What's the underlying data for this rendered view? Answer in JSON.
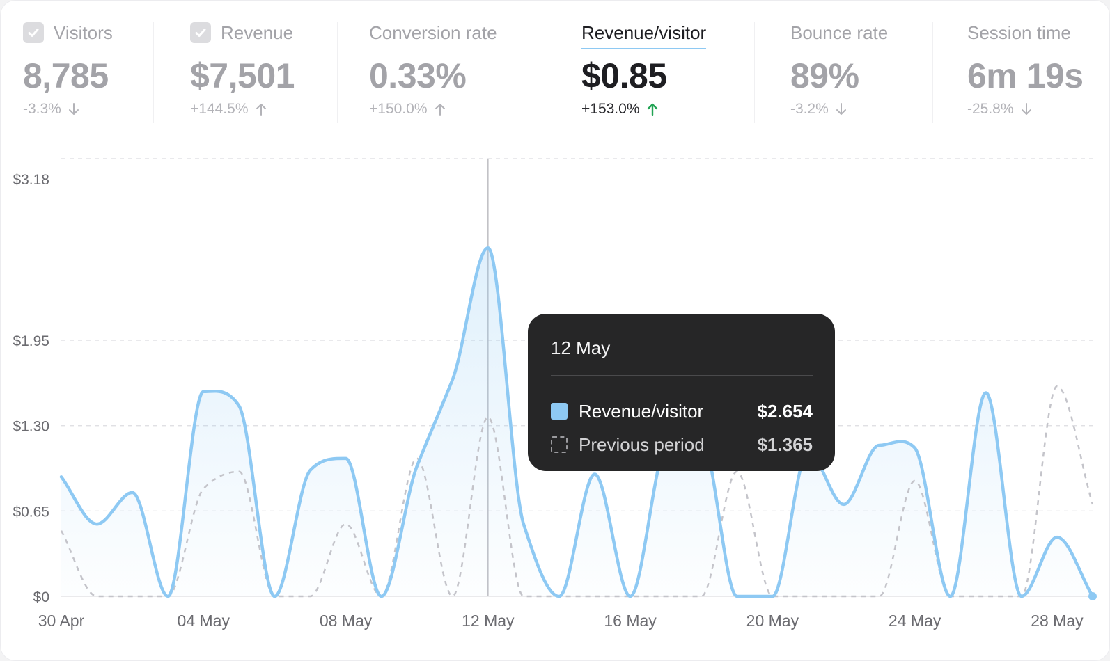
{
  "metrics": [
    {
      "label": "Visitors",
      "value": "8,785",
      "change": "-3.3%",
      "direction": "down",
      "checkbox": true,
      "active": false
    },
    {
      "label": "Revenue",
      "value": "$7,501",
      "change": "+144.5%",
      "direction": "up",
      "checkbox": true,
      "active": false
    },
    {
      "label": "Conversion rate",
      "value": "0.33%",
      "change": "+150.0%",
      "direction": "up",
      "checkbox": false,
      "active": false
    },
    {
      "label": "Revenue/visitor",
      "value": "$0.85",
      "change": "+153.0%",
      "direction": "up",
      "checkbox": false,
      "active": true
    },
    {
      "label": "Bounce rate",
      "value": "89%",
      "change": "-3.2%",
      "direction": "down",
      "checkbox": false,
      "active": false
    },
    {
      "label": "Session time",
      "value": "6m 19s",
      "change": "-25.8%",
      "direction": "down",
      "checkbox": false,
      "active": false
    }
  ],
  "colors": {
    "current": "#8ec9f3",
    "previous": "#c4c4ca",
    "up": "#23a455",
    "muted": "#a3a3a8",
    "tooltip_bg": "#262627"
  },
  "tooltip": {
    "date": "12 May",
    "rows": [
      {
        "name": "Revenue/visitor",
        "value": "$2.654",
        "style": "solid"
      },
      {
        "name": "Previous period",
        "value": "$1.365",
        "style": "dashed"
      }
    ]
  },
  "chart_data": {
    "type": "line",
    "title": "",
    "xlabel": "",
    "ylabel": "",
    "x": [
      "30 Apr",
      "01 May",
      "02 May",
      "03 May",
      "04 May",
      "05 May",
      "06 May",
      "07 May",
      "08 May",
      "09 May",
      "10 May",
      "11 May",
      "12 May",
      "13 May",
      "14 May",
      "15 May",
      "16 May",
      "17 May",
      "18 May",
      "19 May",
      "20 May",
      "21 May",
      "22 May",
      "23 May",
      "24 May",
      "25 May",
      "26 May",
      "27 May",
      "28 May",
      "29 May"
    ],
    "x_ticks": [
      "30 Apr",
      "04 May",
      "08 May",
      "12 May",
      "16 May",
      "20 May",
      "24 May",
      "28 May"
    ],
    "y_ticks": [
      {
        "label": "$0",
        "value": 0
      },
      {
        "label": "$0.65",
        "value": 0.65
      },
      {
        "label": "$1.30",
        "value": 1.3
      },
      {
        "label": "$1.95",
        "value": 1.95
      },
      {
        "label": "$3.18",
        "value": 3.18
      }
    ],
    "ylim": [
      0,
      3.18
    ],
    "grid": true,
    "highlight_index": 12,
    "series": [
      {
        "name": "Revenue/visitor",
        "style": "solid",
        "values": [
          0.91,
          0.55,
          0.79,
          0,
          1.56,
          1.45,
          0,
          0.96,
          1.05,
          0,
          0.99,
          1.65,
          2.654,
          0.55,
          0,
          0.93,
          0,
          1.15,
          1.2,
          0,
          0,
          1.1,
          0.7,
          1.15,
          1.13,
          0,
          1.55,
          0,
          0.45,
          0
        ]
      },
      {
        "name": "Previous period",
        "style": "dashed",
        "values": [
          0.5,
          0,
          0,
          0,
          0.82,
          0.95,
          0,
          0,
          0.55,
          0,
          1.05,
          0,
          1.365,
          0,
          0,
          0,
          0,
          0,
          0,
          0.95,
          0,
          0,
          0,
          0,
          0.88,
          0,
          0,
          0,
          1.6,
          0.7
        ]
      }
    ]
  }
}
